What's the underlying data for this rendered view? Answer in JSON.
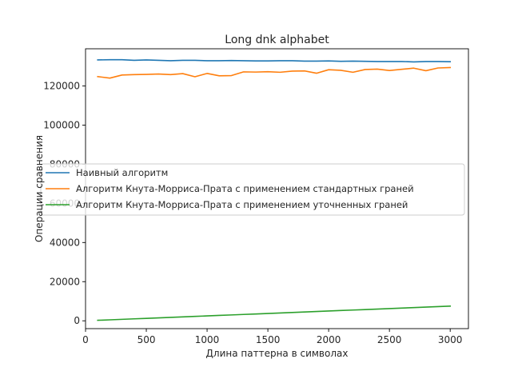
{
  "chart_data": {
    "type": "line",
    "title": "Long dnk alphabet",
    "xlabel": "Длина паттерна в символах",
    "ylabel": "Операции сравнения",
    "xlim": [
      0,
      3150
    ],
    "ylim": [
      -4000,
      139000
    ],
    "xticks": [
      0,
      500,
      1000,
      1500,
      2000,
      2500,
      3000
    ],
    "yticks": [
      0,
      20000,
      40000,
      60000,
      80000,
      100000,
      120000
    ],
    "xtick_labels": [
      "0",
      "500",
      "1000",
      "1500",
      "2000",
      "2500",
      "3000"
    ],
    "ytick_labels": [
      "0",
      "20000",
      "40000",
      "60000",
      "80000",
      "100000",
      "120000"
    ],
    "grid": false,
    "legend_position": "center-left",
    "x": [
      100,
      200,
      300,
      400,
      500,
      600,
      700,
      800,
      900,
      1000,
      1100,
      1200,
      1300,
      1400,
      1500,
      1600,
      1700,
      1800,
      1900,
      2000,
      2100,
      2200,
      2300,
      2400,
      2500,
      2600,
      2700,
      2800,
      2900,
      3000
    ],
    "series": [
      {
        "name": "Наивный алгоритм",
        "color": "#1f77b4",
        "values": [
          133300,
          133400,
          133400,
          133100,
          133300,
          133100,
          132900,
          133100,
          133100,
          132900,
          132900,
          133000,
          132900,
          132800,
          132800,
          132900,
          132900,
          132700,
          132700,
          132800,
          132600,
          132700,
          132600,
          132500,
          132500,
          132500,
          132300,
          132500,
          132500,
          132400
        ]
      },
      {
        "name": "Алгоритм Кнута-Морриса-Прата с применением стандартных граней",
        "color": "#ff7f0e",
        "values": [
          124800,
          124000,
          125600,
          125800,
          125900,
          126100,
          125800,
          126300,
          124700,
          126400,
          125200,
          125300,
          127200,
          127100,
          127300,
          127000,
          127600,
          127700,
          126500,
          128300,
          128000,
          127000,
          128400,
          128600,
          127900,
          128500,
          129100,
          127800,
          129200,
          129400
        ]
      },
      {
        "name": "Алгоритм Кнута-Морриса-Прата с применением уточненных граней",
        "color": "#2ca02c",
        "values": [
          250,
          500,
          750,
          1000,
          1250,
          1500,
          1750,
          2000,
          2250,
          2500,
          2750,
          3000,
          3250,
          3500,
          3750,
          4000,
          4250,
          4500,
          4750,
          5000,
          5250,
          5500,
          5750,
          6000,
          6250,
          6500,
          6750,
          7000,
          7250,
          7500
        ]
      }
    ]
  }
}
